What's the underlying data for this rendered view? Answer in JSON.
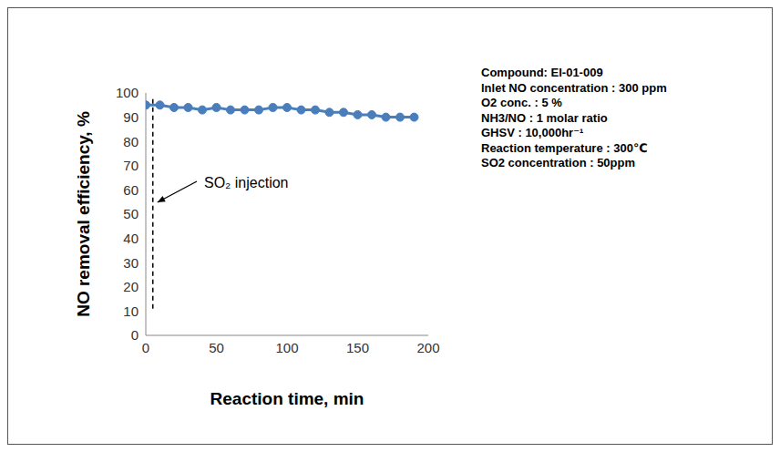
{
  "chart_data": {
    "type": "line",
    "x_label": "Reaction time, min",
    "y_label": "NO removal efficiency, %",
    "x": [
      0,
      10,
      20,
      30,
      40,
      50,
      60,
      70,
      80,
      90,
      100,
      110,
      120,
      130,
      140,
      150,
      160,
      170,
      180,
      190
    ],
    "series": [
      {
        "name": "EI-01-009",
        "color": "#4a7ebb",
        "marker": "circle",
        "line_style": "solid",
        "values": [
          95,
          95,
          94,
          94,
          93,
          94,
          93,
          93,
          93,
          94,
          94,
          93,
          93,
          92,
          92,
          91,
          91,
          90,
          90,
          90
        ]
      }
    ],
    "xlim": [
      0,
      200
    ],
    "xticks": [
      0,
      50,
      100,
      150,
      200
    ],
    "ylim": [
      0,
      100
    ],
    "yticks": [
      0,
      10,
      20,
      30,
      40,
      50,
      60,
      70,
      80,
      90,
      100
    ],
    "grid": false,
    "annotations": [
      {
        "text": "SO₂ injection",
        "x": 5,
        "y_start": 11,
        "y_end": 99
      }
    ],
    "conditions": [
      "Compound: EI-01-009",
      "lnlet NO concentration : 300 ppm",
      "O2 conc. : 5 %",
      "NH3/NO : 1 molar ratio",
      "GHSV : 10,000hr⁻¹",
      "Reaction temperature : 300℃",
      "SO2 concentration : 50ppm"
    ]
  }
}
